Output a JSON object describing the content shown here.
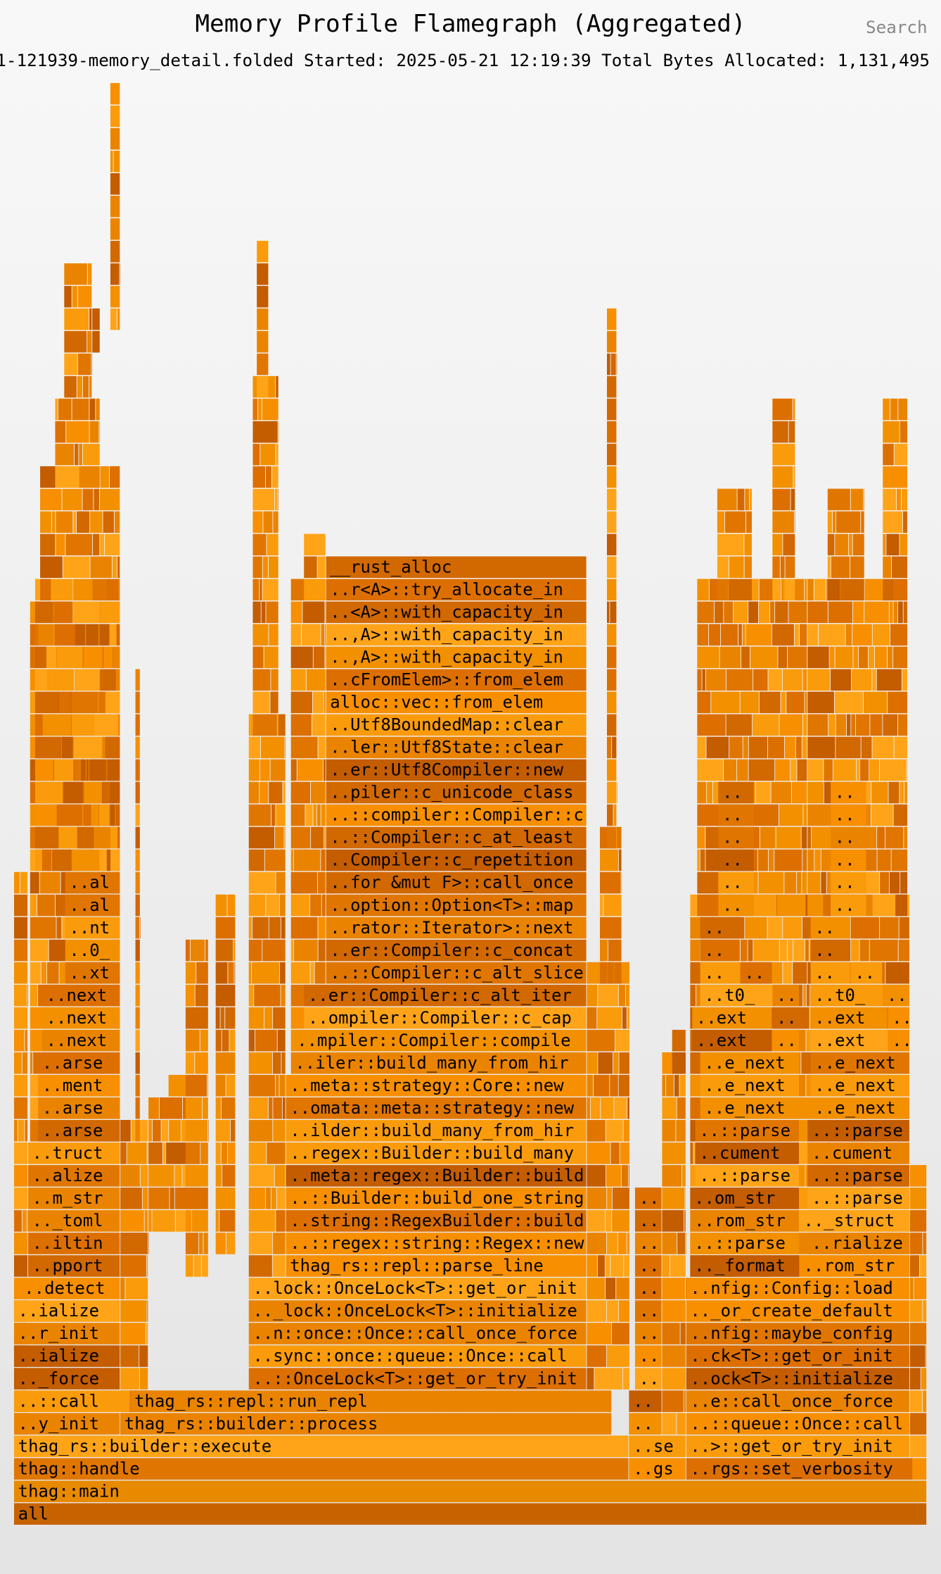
{
  "header": {
    "title": "Memory Profile Flamegraph (Aggregated)",
    "search": "Search",
    "subtitle": "1-121939-memory_detail.folded Started: 2025-05-21 12:19:39 Total Bytes Allocated: 1,131,495 P"
  },
  "frames": [
    {
      "label": "all"
    },
    {
      "label": "thag::main"
    },
    {
      "label": "thag::handle"
    },
    {
      "label": "..gs"
    },
    {
      "label": "..rgs::set_verbosity"
    },
    {
      "label": "thag_rs::builder::execute"
    },
    {
      "label": "..se"
    },
    {
      "label": "..>::get_or_try_init"
    },
    {
      "label": "..y_init"
    },
    {
      "label": "thag_rs::builder::process"
    },
    {
      "label": ".."
    },
    {
      "label": "..::queue::Once::call"
    },
    {
      "label": "..::call"
    },
    {
      "label": "thag_rs::repl::run_repl"
    },
    {
      "label": ".."
    },
    {
      "label": "..e::call_once_force"
    },
    {
      "label": ".._force"
    },
    {
      "label": "..::OnceLock<T>::get_or_try_init"
    },
    {
      "label": ".."
    },
    {
      "label": "..ock<T>::initialize"
    },
    {
      "label": "..ialize"
    },
    {
      "label": "..sync::once::queue::Once::call"
    },
    {
      "label": ".."
    },
    {
      "label": "..ck<T>::get_or_init"
    },
    {
      "label": "..r_init"
    },
    {
      "label": "..n::once::Once::call_once_force"
    },
    {
      "label": ".."
    },
    {
      "label": "..nfig::maybe_config"
    },
    {
      "label": "..ialize"
    },
    {
      "label": ".._lock::OnceLock<T>::initialize"
    },
    {
      "label": ".."
    },
    {
      "label": ".._or_create_default"
    },
    {
      "label": "..detect"
    },
    {
      "label": "..lock::OnceLock<T>::get_or_init"
    },
    {
      "label": ".."
    },
    {
      "label": "..nfig::Config::load"
    },
    {
      "label": "..pport"
    },
    {
      "label": "thag_rs::repl::parse_line"
    },
    {
      "label": ".."
    },
    {
      "label": ".._format"
    },
    {
      "label": "..rom_str"
    },
    {
      "label": "..iltin"
    },
    {
      "label": "..::regex::string::Regex::new"
    },
    {
      "label": ".."
    },
    {
      "label": "..::parse"
    },
    {
      "label": "..rialize"
    },
    {
      "label": ".._toml"
    },
    {
      "label": "..string::RegexBuilder::build"
    },
    {
      "label": ".."
    },
    {
      "label": "..rom_str"
    },
    {
      "label": ".._struct"
    },
    {
      "label": "..m_str"
    },
    {
      "label": "..::Builder::build_one_string"
    },
    {
      "label": ".."
    },
    {
      "label": "..om_str"
    },
    {
      "label": "..::parse"
    },
    {
      "label": "..alize"
    },
    {
      "label": "..meta::regex::Builder::build"
    },
    {
      "label": "..::parse"
    },
    {
      "label": "..::parse"
    },
    {
      "label": "..truct"
    },
    {
      "label": "..regex::Builder::build_many"
    },
    {
      "label": "..cument"
    },
    {
      "label": "..cument"
    },
    {
      "label": "..arse"
    },
    {
      "label": "..ilder::build_many_from_hir"
    },
    {
      "label": "..::parse"
    },
    {
      "label": "..::parse"
    },
    {
      "label": "..arse"
    },
    {
      "label": "..omata::meta::strategy::new"
    },
    {
      "label": "..e_next"
    },
    {
      "label": "..e_next"
    },
    {
      "label": "..ment"
    },
    {
      "label": "..meta::strategy::Core::new"
    },
    {
      "label": "..e_next"
    },
    {
      "label": "..e_next"
    },
    {
      "label": "..arse"
    },
    {
      "label": "..iler::build_many_from_hir"
    },
    {
      "label": "..e_next"
    },
    {
      "label": "..e_next"
    },
    {
      "label": "..next"
    },
    {
      "label": "..mpiler::Compiler::compile"
    },
    {
      "label": "..ext"
    },
    {
      "label": ".."
    },
    {
      "label": "..ext"
    },
    {
      "label": ".."
    },
    {
      "label": "..next"
    },
    {
      "label": "..ompiler::Compiler::c_cap"
    },
    {
      "label": "..ext"
    },
    {
      "label": ".."
    },
    {
      "label": "..ext"
    },
    {
      "label": ".."
    },
    {
      "label": "..next"
    },
    {
      "label": "..er::Compiler::c_alt_iter"
    },
    {
      "label": "..t0_"
    },
    {
      "label": ".."
    },
    {
      "label": "..t0_"
    },
    {
      "label": ".."
    },
    {
      "label": "..xt"
    },
    {
      "label": "..::Compiler::c_alt_slice"
    },
    {
      "label": ".."
    },
    {
      "label": ".."
    },
    {
      "label": ".."
    },
    {
      "label": ".."
    },
    {
      "label": "..0_"
    },
    {
      "label": "..er::Compiler::c_concat"
    },
    {
      "label": ".."
    },
    {
      "label": ".."
    },
    {
      "label": "..nt"
    },
    {
      "label": "..rator::Iterator>::next"
    },
    {
      "label": ".."
    },
    {
      "label": ".."
    },
    {
      "label": "..al"
    },
    {
      "label": "..option::Option<T>::map"
    },
    {
      "label": ".."
    },
    {
      "label": ".."
    },
    {
      "label": "..al"
    },
    {
      "label": "..for &mut F>::call_once"
    },
    {
      "label": ".."
    },
    {
      "label": ".."
    },
    {
      "label": "..Compiler::c_repetition"
    },
    {
      "label": ".."
    },
    {
      "label": ".."
    },
    {
      "label": "..::Compiler::c_at_least"
    },
    {
      "label": ".."
    },
    {
      "label": ".."
    },
    {
      "label": "..::compiler::Compiler::c"
    },
    {
      "label": ".."
    },
    {
      "label": ".."
    },
    {
      "label": "..piler::c_unicode_class"
    },
    {
      "label": ".."
    },
    {
      "label": ".."
    },
    {
      "label": "..er::Utf8Compiler::new"
    },
    {
      "label": "..ler::Utf8State::clear"
    },
    {
      "label": "..Utf8BoundedMap::clear"
    },
    {
      "label": "alloc::vec::from_elem"
    },
    {
      "label": "..cFromElem>::from_elem"
    },
    {
      "label": "..,A>::with_capacity_in"
    },
    {
      "label": "..,A>::with_capacity_in"
    },
    {
      "label": "..<A>::with_capacity_in"
    },
    {
      "label": "..r<A>::try_allocate_in"
    },
    {
      "label": "__rust_alloc"
    }
  ]
}
